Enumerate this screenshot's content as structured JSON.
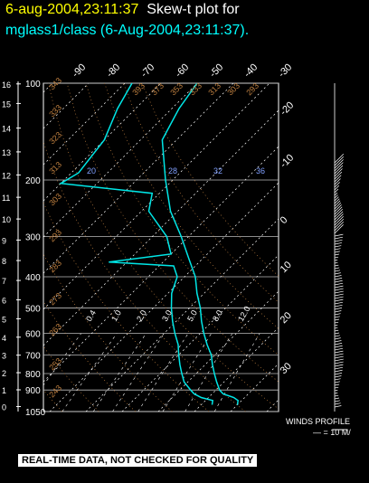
{
  "header": {
    "datetime": "6-aug-2004,23:11:37",
    "plot_label": "Skew-t plot for",
    "subtitle": "mglass1/class (6-Aug-2004,23:11:37)."
  },
  "footer": {
    "quality_notice": "REAL-TIME DATA, NOT CHECKED FOR QUALITY",
    "winds_label": "WINDS PROFILE",
    "winds_scale": "— = 10 M/"
  },
  "chart_data": {
    "type": "line",
    "title": "Skew-t plot for mglass1/class (6-Aug-2004,23:11:37).",
    "pressure_axis_ticks_hpa": [
      "100",
      "200",
      "300",
      "400",
      "500",
      "600",
      "700",
      "800",
      "900",
      "1050"
    ],
    "height_axis_ticks_km": [
      "0",
      "1",
      "2",
      "3",
      "4",
      "5",
      "6",
      "7",
      "8",
      "9",
      "10",
      "11",
      "12",
      "13",
      "14",
      "15",
      "16"
    ],
    "temperature_ticks_top_c": [
      "-90",
      "-80",
      "-70",
      "-60",
      "-50",
      "-40",
      "-30"
    ],
    "temperature_ticks_right_c": [
      "-20",
      "-10",
      "0",
      "10",
      "20",
      "30"
    ],
    "mixing_ratio_labels": [
      "20",
      "28",
      "32",
      "36"
    ],
    "mixing_ratio_labels_lower": [
      "0.4",
      "1.0",
      "2.0",
      "3.0",
      "5.0",
      "8.0",
      "12.0"
    ],
    "dry_adiabat_labels": [
      "243",
      "253",
      "263",
      "273",
      "283",
      "293",
      "303",
      "313",
      "323",
      "333",
      "343"
    ],
    "moist_adiabat_labels_top": [
      "393",
      "373",
      "353",
      "333",
      "313",
      "303",
      "293"
    ],
    "series": [
      {
        "color": "#00e6e6",
        "units": "temperature_c",
        "pressure_hpa": [
          1000,
          970,
          950,
          925,
          900,
          850,
          800,
          750,
          700,
          650,
          600,
          550,
          500,
          450,
          400,
          350,
          300,
          250,
          200,
          150,
          120,
          100
        ],
        "values": [
          30,
          29,
          27,
          23,
          21,
          18,
          15,
          12,
          9,
          5,
          1,
          -3,
          -7,
          -12,
          -17,
          -24,
          -32,
          -42,
          -52,
          -64,
          -68,
          -70
        ]
      },
      {
        "color": "#00e6e6",
        "units": "dewpoint_c",
        "pressure_hpa": [
          1000,
          970,
          950,
          925,
          900,
          850,
          800,
          750,
          700,
          650,
          600,
          550,
          500,
          450,
          400,
          370,
          360,
          340,
          300,
          250,
          220,
          205,
          190,
          150,
          120,
          100
        ],
        "values": [
          23,
          22,
          18,
          15,
          13,
          9,
          6,
          3,
          0,
          -3,
          -7,
          -11,
          -15,
          -19,
          -22,
          -26,
          -45,
          -30,
          -36,
          -48,
          -52,
          -80,
          -78,
          -80,
          -85,
          -88
        ]
      }
    ],
    "axes": {
      "pressure_range_hpa": [
        1050,
        100
      ],
      "pressure_scale": "log",
      "skew_deg": 45,
      "grid": true
    }
  }
}
